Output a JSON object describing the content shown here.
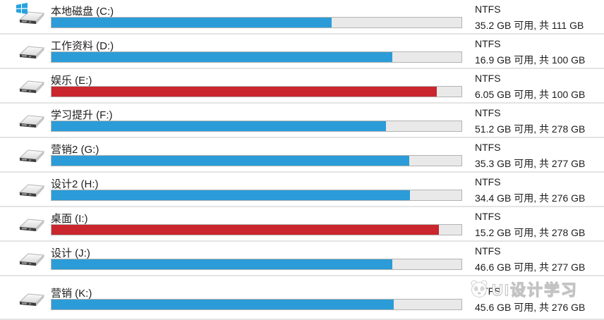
{
  "colors": {
    "bar_blue": "#2b9cd8",
    "bar_red": "#c9262d",
    "bar_track": "#e9e9e9",
    "bar_border": "#b3b3b3",
    "separator": "#e4e4e4",
    "text": "#1c1c1c"
  },
  "watermark": {
    "text": "UI设计学习",
    "icon": "panda-mascot"
  },
  "drives": [
    {
      "label": "本地磁盘 (C:)",
      "filesystem": "NTFS",
      "usage": "35.2 GB 可用, 共 111 GB",
      "free_gb": 35.2,
      "total_gb": 111,
      "percent_used": 68.3,
      "bar": "blue",
      "system": true
    },
    {
      "label": "工作资料 (D:)",
      "filesystem": "NTFS",
      "usage": "16.9 GB 可用, 共 100 GB",
      "free_gb": 16.9,
      "total_gb": 100,
      "percent_used": 83.1,
      "bar": "blue",
      "system": false
    },
    {
      "label": "娱乐 (E:)",
      "filesystem": "NTFS",
      "usage": "6.05 GB 可用, 共 100 GB",
      "free_gb": 6.05,
      "total_gb": 100,
      "percent_used": 94.0,
      "bar": "red",
      "system": false
    },
    {
      "label": "学习提升 (F:)",
      "filesystem": "NTFS",
      "usage": "51.2 GB 可用, 共 278 GB",
      "free_gb": 51.2,
      "total_gb": 278,
      "percent_used": 81.6,
      "bar": "blue",
      "system": false
    },
    {
      "label": "营销2 (G:)",
      "filesystem": "NTFS",
      "usage": "35.3 GB 可用, 共 277 GB",
      "free_gb": 35.3,
      "total_gb": 277,
      "percent_used": 87.3,
      "bar": "blue",
      "system": false
    },
    {
      "label": "设计2 (H:)",
      "filesystem": "NTFS",
      "usage": "34.4 GB 可用, 共 276 GB",
      "free_gb": 34.4,
      "total_gb": 276,
      "percent_used": 87.5,
      "bar": "blue",
      "system": false
    },
    {
      "label": "桌面 (I:)",
      "filesystem": "NTFS",
      "usage": "15.2 GB 可用, 共 278 GB",
      "free_gb": 15.2,
      "total_gb": 278,
      "percent_used": 94.5,
      "bar": "red",
      "system": false
    },
    {
      "label": "设计 (J:)",
      "filesystem": "NTFS",
      "usage": "46.6 GB 可用, 共 277 GB",
      "free_gb": 46.6,
      "total_gb": 277,
      "percent_used": 83.2,
      "bar": "blue",
      "system": false
    },
    {
      "label": "营销 (K:)",
      "filesystem": "NTFS",
      "usage": "45.6 GB 可用, 共 276 GB",
      "free_gb": 45.6,
      "total_gb": 276,
      "percent_used": 83.5,
      "bar": "blue",
      "system": false
    }
  ]
}
